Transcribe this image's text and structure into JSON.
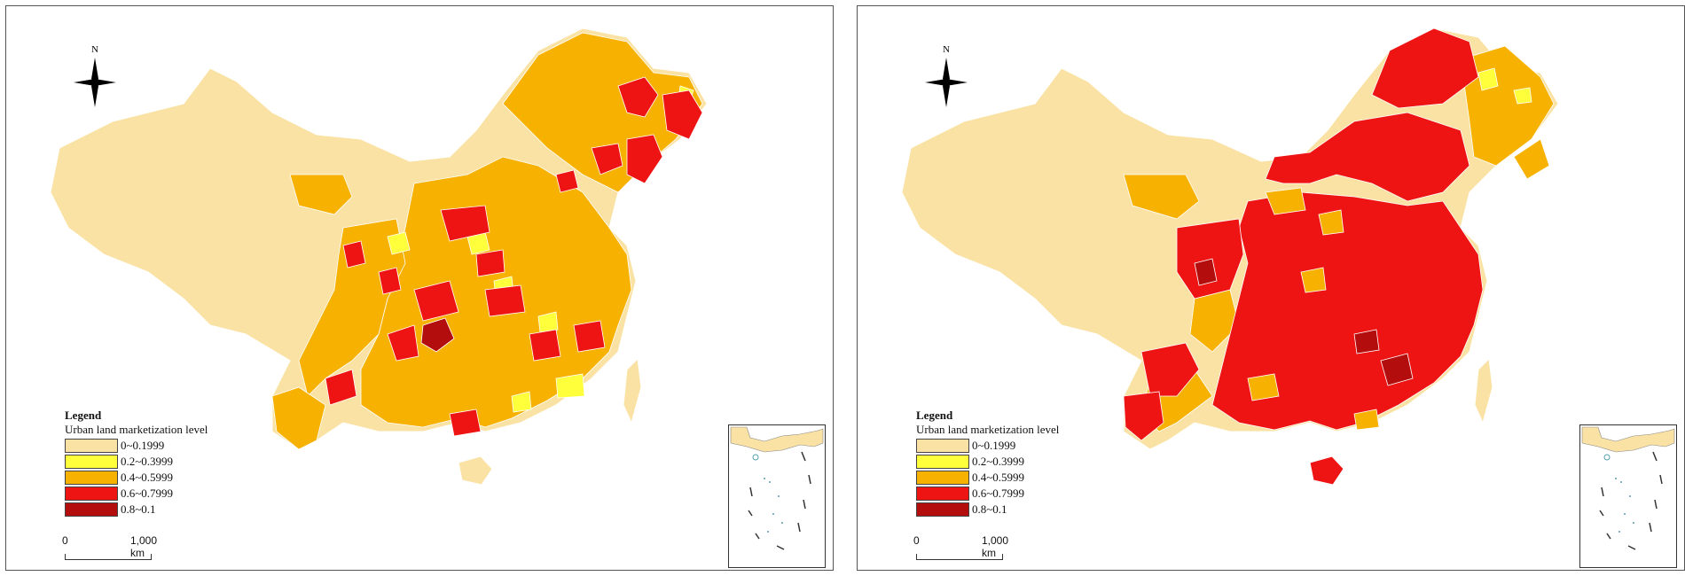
{
  "colors": {
    "class0": "#fae2a4",
    "class1": "#ffff3c",
    "class2": "#f7b100",
    "class3": "#ee1414",
    "class4": "#b40d0d",
    "border": "#ffffff",
    "frame": "#555555"
  },
  "maps": [
    {
      "legend": {
        "title": "Legend",
        "subtitle": "Urban land marketization level",
        "items": [
          {
            "label": "0~0.1999",
            "color": "#fae2a4"
          },
          {
            "label": "0.2~0.3999",
            "color": "#ffff3c"
          },
          {
            "label": "0.4~0.5999",
            "color": "#f7b100"
          },
          {
            "label": "0.6~0.7999",
            "color": "#ee1414"
          },
          {
            "label": "0.8~0.1",
            "color": "#b40d0d"
          }
        ]
      },
      "north_label": "N",
      "scale": {
        "start": "0",
        "end": "1,000 km"
      }
    },
    {
      "legend": {
        "title": "Legend",
        "subtitle": "Urban land marketization level",
        "items": [
          {
            "label": "0~0.1999",
            "color": "#fae2a4"
          },
          {
            "label": "0.2~0.3999",
            "color": "#ffff3c"
          },
          {
            "label": "0.4~0.5999",
            "color": "#f7b100"
          },
          {
            "label": "0.6~0.7999",
            "color": "#ee1414"
          },
          {
            "label": "0.8~0.1",
            "color": "#b40d0d"
          }
        ]
      },
      "north_label": "N",
      "scale": {
        "start": "0",
        "end": "1,000 km"
      }
    }
  ]
}
